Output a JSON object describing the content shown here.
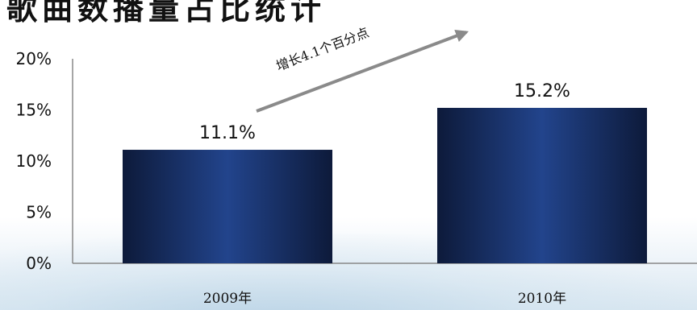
{
  "page": {
    "title": "歌曲数播量占比统计"
  },
  "chart_data": {
    "type": "bar",
    "categories": [
      "2009年",
      "2010年"
    ],
    "values": [
      11.1,
      15.2
    ],
    "value_labels": [
      "11.1%",
      "15.2%"
    ],
    "ylim": [
      0,
      20
    ],
    "yticks": [
      0,
      5,
      10,
      15,
      20
    ],
    "ytick_labels": [
      "0%",
      "5%",
      "10%",
      "15%",
      "20%"
    ],
    "annotation": "增长4.1个百分点",
    "grid": false,
    "colors": {
      "bar_edge": "#0d1a3a",
      "bar_center": "#22448c",
      "axis": "#888888",
      "arrow": "#8a8a8a"
    }
  }
}
